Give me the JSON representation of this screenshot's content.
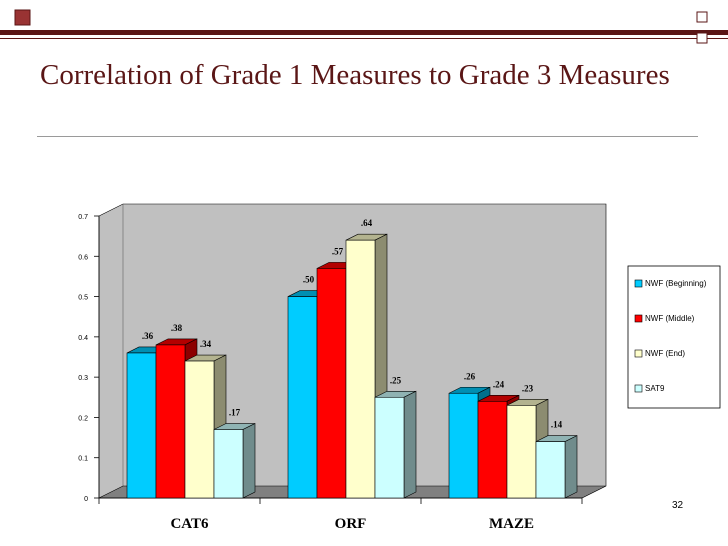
{
  "slide": {
    "title": "Correlation of Grade 1 Measures to Grade 3 Measures",
    "page_number": "32"
  },
  "colors": {
    "header_dark": "#5a1616",
    "header_bar": "#993333",
    "box_fill": "#ffffff",
    "wall": "#c0c0c0",
    "floor": "#808080"
  },
  "chart_data": {
    "type": "bar",
    "title": "",
    "xlabel": "",
    "ylabel": "",
    "categories": [
      "CAT6",
      "ORF",
      "MAZE"
    ],
    "ylim": [
      0,
      0.7
    ],
    "yticks": [
      0,
      0.1,
      0.2,
      0.3,
      0.4,
      0.5,
      0.6,
      0.7
    ],
    "ytick_labels": [
      "0",
      "0.1",
      "0.2",
      "0.3",
      "0.4",
      "0.5",
      "0.6",
      "0.7"
    ],
    "grid": false,
    "legend_position": "right",
    "series": [
      {
        "name": "NWF (Beginning)",
        "color": "#00ccff",
        "values": [
          0.36,
          0.5,
          0.26
        ],
        "labels": [
          ".36",
          ".50",
          ".26"
        ]
      },
      {
        "name": "NWF (Middle)",
        "color": "#ff0000",
        "values": [
          0.38,
          0.57,
          0.24
        ],
        "labels": [
          ".38",
          ".57",
          ".24"
        ]
      },
      {
        "name": "NWF (End)",
        "color": "#ffffcc",
        "values": [
          0.34,
          0.64,
          0.23
        ],
        "labels": [
          ".34",
          ".64",
          ".23"
        ]
      },
      {
        "name": "SAT9",
        "color": "#ccffff",
        "values": [
          0.17,
          0.25,
          0.14
        ],
        "labels": [
          ".17",
          ".25",
          ".14"
        ]
      }
    ]
  }
}
